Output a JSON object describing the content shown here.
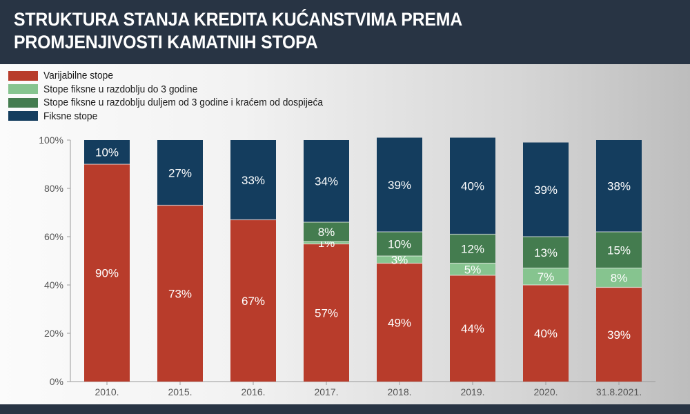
{
  "title_lines": [
    "STRUKTURA STANJA KREDITA KUĆANSTVIMA PREMA",
    "PROMJENJIVOSTI KAMATNIH STOPA"
  ],
  "colors": {
    "variable": "#b83c2b",
    "fixed_short": "#86c48f",
    "fixed_long": "#447c4f",
    "fixed": "#143d5e"
  },
  "chart_data": {
    "type": "bar",
    "stacked": true,
    "title": "STRUKTURA STANJA KREDITA KUĆANSTVIMA PREMA PROMJENJIVOSTI KAMATNIH STOPA",
    "categories": [
      "2010.",
      "2015.",
      "2016.",
      "2017.",
      "2018.",
      "2019.",
      "2020.",
      "31.8.2021."
    ],
    "series": [
      {
        "name": "Varijabilne stope",
        "color_key": "variable",
        "values": [
          90,
          73,
          67,
          57,
          49,
          44,
          40,
          39
        ],
        "labels": [
          "90%",
          "73%",
          "67%",
          "57%",
          "49%",
          "44%",
          "40%",
          "39%"
        ]
      },
      {
        "name": "Stope fiksne u razdoblju do 3 godine",
        "color_key": "fixed_short",
        "values": [
          0,
          0,
          0,
          1,
          3,
          5,
          7,
          8
        ],
        "labels": [
          "",
          "",
          "",
          "1%",
          "3%",
          "5%",
          "7%",
          "8%"
        ]
      },
      {
        "name": "Stope fiksne u razdoblju duljem od 3 godine i kraćem od dospijeća",
        "color_key": "fixed_long",
        "values": [
          0,
          0,
          0,
          8,
          10,
          12,
          13,
          15
        ],
        "labels": [
          "",
          "",
          "",
          "8%",
          "10%",
          "12%",
          "13%",
          "15%"
        ]
      },
      {
        "name": "Fiksne stope",
        "color_key": "fixed",
        "values": [
          10,
          27,
          33,
          34,
          39,
          40,
          39,
          38
        ],
        "labels": [
          "10%",
          "27%",
          "33%",
          "34%",
          "39%",
          "40%",
          "39%",
          "38%"
        ]
      }
    ],
    "xlabel": "",
    "ylabel": "",
    "ylim": [
      0,
      100
    ],
    "yticks": [
      "0%",
      "20%",
      "40%",
      "60%",
      "80%",
      "100%"
    ],
    "legend_position": "top-left",
    "grid": false
  }
}
